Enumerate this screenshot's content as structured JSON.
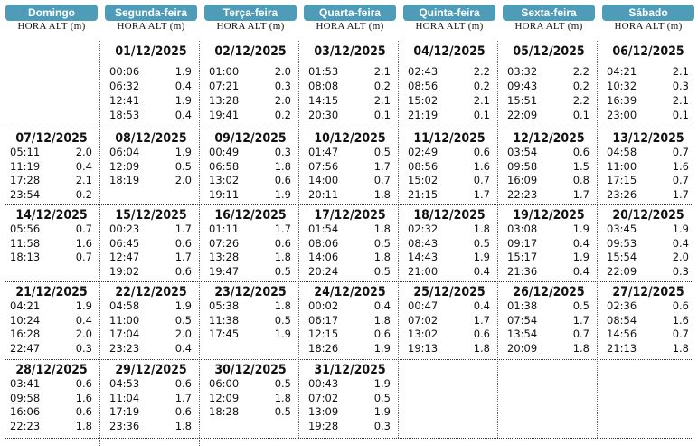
{
  "header": {
    "days": [
      "Domingo",
      "Segunda-feira",
      "Terça-feira",
      "Quarta-feira",
      "Quinta-feira",
      "Sexta-feira",
      "Sábado"
    ],
    "subheader": "HORA ALT (m)"
  },
  "weeks": [
    [
      null,
      {
        "date": "01/12/2025",
        "tides": [
          [
            "00:06",
            "1.9"
          ],
          [
            "06:32",
            "0.4"
          ],
          [
            "12:41",
            "1.9"
          ],
          [
            "18:53",
            "0.4"
          ]
        ]
      },
      {
        "date": "02/12/2025",
        "tides": [
          [
            "01:00",
            "2.0"
          ],
          [
            "07:21",
            "0.3"
          ],
          [
            "13:28",
            "2.0"
          ],
          [
            "19:41",
            "0.2"
          ]
        ]
      },
      {
        "date": "03/12/2025",
        "tides": [
          [
            "01:53",
            "2.1"
          ],
          [
            "08:08",
            "0.2"
          ],
          [
            "14:15",
            "2.1"
          ],
          [
            "20:30",
            "0.1"
          ]
        ]
      },
      {
        "date": "04/12/2025",
        "tides": [
          [
            "02:43",
            "2.2"
          ],
          [
            "08:56",
            "0.2"
          ],
          [
            "15:02",
            "2.1"
          ],
          [
            "21:19",
            "0.1"
          ]
        ]
      },
      {
        "date": "05/12/2025",
        "tides": [
          [
            "03:32",
            "2.2"
          ],
          [
            "09:43",
            "0.2"
          ],
          [
            "15:51",
            "2.2"
          ],
          [
            "22:09",
            "0.1"
          ]
        ]
      },
      {
        "date": "06/12/2025",
        "tides": [
          [
            "04:21",
            "2.1"
          ],
          [
            "10:32",
            "0.3"
          ],
          [
            "16:39",
            "2.1"
          ],
          [
            "23:00",
            "0.1"
          ]
        ]
      }
    ],
    [
      {
        "date": "07/12/2025",
        "tides": [
          [
            "05:11",
            "2.0"
          ],
          [
            "11:19",
            "0.4"
          ],
          [
            "17:28",
            "2.1"
          ],
          [
            "23:54",
            "0.2"
          ]
        ]
      },
      {
        "date": "08/12/2025",
        "tides": [
          [
            "06:04",
            "1.9"
          ],
          [
            "12:09",
            "0.5"
          ],
          [
            "18:19",
            "2.0"
          ]
        ]
      },
      {
        "date": "09/12/2025",
        "tides": [
          [
            "00:49",
            "0.3"
          ],
          [
            "06:58",
            "1.8"
          ],
          [
            "13:02",
            "0.6"
          ],
          [
            "19:11",
            "1.9"
          ]
        ]
      },
      {
        "date": "10/12/2025",
        "tides": [
          [
            "01:47",
            "0.5"
          ],
          [
            "07:56",
            "1.7"
          ],
          [
            "14:00",
            "0.7"
          ],
          [
            "20:11",
            "1.8"
          ]
        ]
      },
      {
        "date": "11/12/2025",
        "tides": [
          [
            "02:49",
            "0.6"
          ],
          [
            "08:56",
            "1.6"
          ],
          [
            "15:02",
            "0.7"
          ],
          [
            "21:15",
            "1.7"
          ]
        ]
      },
      {
        "date": "12/12/2025",
        "tides": [
          [
            "03:54",
            "0.6"
          ],
          [
            "09:58",
            "1.5"
          ],
          [
            "16:09",
            "0.8"
          ],
          [
            "22:23",
            "1.7"
          ]
        ]
      },
      {
        "date": "13/12/2025",
        "tides": [
          [
            "04:58",
            "0.7"
          ],
          [
            "11:00",
            "1.6"
          ],
          [
            "17:15",
            "0.7"
          ],
          [
            "23:26",
            "1.7"
          ]
        ]
      }
    ],
    [
      {
        "date": "14/12/2025",
        "tides": [
          [
            "05:56",
            "0.7"
          ],
          [
            "11:58",
            "1.6"
          ],
          [
            "18:13",
            "0.7"
          ]
        ]
      },
      {
        "date": "15/12/2025",
        "tides": [
          [
            "00:23",
            "1.7"
          ],
          [
            "06:45",
            "0.6"
          ],
          [
            "12:47",
            "1.7"
          ],
          [
            "19:02",
            "0.6"
          ]
        ]
      },
      {
        "date": "16/12/2025",
        "tides": [
          [
            "01:11",
            "1.7"
          ],
          [
            "07:26",
            "0.6"
          ],
          [
            "13:28",
            "1.8"
          ],
          [
            "19:47",
            "0.5"
          ]
        ]
      },
      {
        "date": "17/12/2025",
        "tides": [
          [
            "01:54",
            "1.8"
          ],
          [
            "08:06",
            "0.5"
          ],
          [
            "14:06",
            "1.8"
          ],
          [
            "20:24",
            "0.5"
          ]
        ]
      },
      {
        "date": "18/12/2025",
        "tides": [
          [
            "02:32",
            "1.8"
          ],
          [
            "08:43",
            "0.5"
          ],
          [
            "14:43",
            "1.9"
          ],
          [
            "21:00",
            "0.4"
          ]
        ]
      },
      {
        "date": "19/12/2025",
        "tides": [
          [
            "03:08",
            "1.9"
          ],
          [
            "09:17",
            "0.4"
          ],
          [
            "15:17",
            "1.9"
          ],
          [
            "21:36",
            "0.4"
          ]
        ]
      },
      {
        "date": "20/12/2025",
        "tides": [
          [
            "03:45",
            "1.9"
          ],
          [
            "09:53",
            "0.4"
          ],
          [
            "15:54",
            "2.0"
          ],
          [
            "22:09",
            "0.3"
          ]
        ]
      }
    ],
    [
      {
        "date": "21/12/2025",
        "tides": [
          [
            "04:21",
            "1.9"
          ],
          [
            "10:24",
            "0.4"
          ],
          [
            "16:28",
            "2.0"
          ],
          [
            "22:47",
            "0.3"
          ]
        ]
      },
      {
        "date": "22/12/2025",
        "tides": [
          [
            "04:58",
            "1.9"
          ],
          [
            "11:00",
            "0.5"
          ],
          [
            "17:04",
            "2.0"
          ],
          [
            "23:23",
            "0.4"
          ]
        ]
      },
      {
        "date": "23/12/2025",
        "tides": [
          [
            "05:38",
            "1.8"
          ],
          [
            "11:38",
            "0.5"
          ],
          [
            "17:45",
            "1.9"
          ]
        ]
      },
      {
        "date": "24/12/2025",
        "tides": [
          [
            "00:02",
            "0.4"
          ],
          [
            "06:17",
            "1.8"
          ],
          [
            "12:15",
            "0.6"
          ],
          [
            "18:26",
            "1.9"
          ]
        ]
      },
      {
        "date": "25/12/2025",
        "tides": [
          [
            "00:47",
            "0.4"
          ],
          [
            "07:02",
            "1.7"
          ],
          [
            "13:02",
            "0.6"
          ],
          [
            "19:13",
            "1.8"
          ]
        ]
      },
      {
        "date": "26/12/2025",
        "tides": [
          [
            "01:38",
            "0.5"
          ],
          [
            "07:54",
            "1.7"
          ],
          [
            "13:54",
            "0.7"
          ],
          [
            "20:09",
            "1.8"
          ]
        ]
      },
      {
        "date": "27/12/2025",
        "tides": [
          [
            "02:36",
            "0.6"
          ],
          [
            "08:54",
            "1.6"
          ],
          [
            "14:56",
            "0.7"
          ],
          [
            "21:13",
            "1.8"
          ]
        ]
      }
    ],
    [
      {
        "date": "28/12/2025",
        "tides": [
          [
            "03:41",
            "0.6"
          ],
          [
            "09:58",
            "1.6"
          ],
          [
            "16:06",
            "0.6"
          ],
          [
            "22:23",
            "1.8"
          ]
        ]
      },
      {
        "date": "29/12/2025",
        "tides": [
          [
            "04:53",
            "0.6"
          ],
          [
            "11:04",
            "1.7"
          ],
          [
            "17:19",
            "0.6"
          ],
          [
            "23:36",
            "1.8"
          ]
        ]
      },
      {
        "date": "30/12/2025",
        "tides": [
          [
            "06:00",
            "0.5"
          ],
          [
            "12:09",
            "1.8"
          ],
          [
            "18:28",
            "0.5"
          ]
        ]
      },
      {
        "date": "31/12/2025",
        "tides": [
          [
            "00:43",
            "1.9"
          ],
          [
            "07:02",
            "0.5"
          ],
          [
            "13:09",
            "1.9"
          ],
          [
            "19:28",
            "0.3"
          ]
        ]
      },
      null,
      null,
      null
    ]
  ]
}
